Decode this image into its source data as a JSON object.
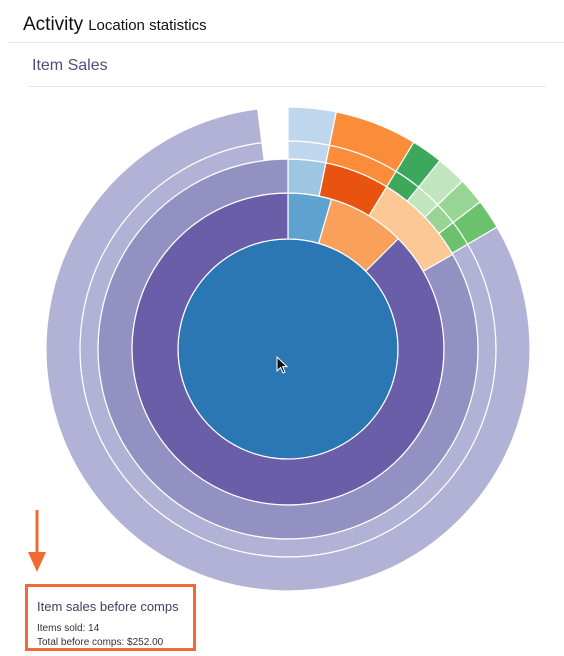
{
  "header": {
    "title": "Activity",
    "subtitle": "Location statistics"
  },
  "section": {
    "title": "Item Sales"
  },
  "chart_data": {
    "type": "sunburst",
    "rings": [
      {
        "name": "ring-1",
        "segments": [
          {
            "value": 1.0,
            "color": "#2a77b4"
          }
        ]
      },
      {
        "name": "ring-2",
        "segments": [
          {
            "value": 0.045,
            "color": "#5ea2d0"
          },
          {
            "value": 0.08,
            "color": "#f9a15a"
          },
          {
            "value": 0.875,
            "color": "#6a5ea8"
          }
        ]
      },
      {
        "name": "ring-3",
        "segments": [
          {
            "value": 0.032,
            "color": "#9ec6e3"
          },
          {
            "value": 0.055,
            "color": "#e8540f"
          },
          {
            "value": 0.08,
            "color": "#fcc996"
          },
          {
            "value": 0.833,
            "color": "#9391c2"
          }
        ]
      },
      {
        "name": "ring-4",
        "segments": [
          {
            "value": 0.032,
            "color": "#bfd7ed"
          },
          {
            "value": 0.055,
            "color": "#fb8c3a"
          },
          {
            "value": 0.021,
            "color": "#3da85b"
          },
          {
            "value": 0.02,
            "color": "#c1e6bf"
          },
          {
            "value": 0.018,
            "color": "#98d594"
          },
          {
            "value": 0.02,
            "color": "#6cc16c"
          },
          {
            "value": 0.814,
            "color": "#b2b1d6"
          }
        ]
      },
      {
        "name": "ring-5",
        "segments": [
          {
            "value": 0.032,
            "color": "#bfd7ed"
          },
          {
            "value": 0.055,
            "color": "#fb8c3a"
          },
          {
            "value": 0.021,
            "color": "#3da85b"
          },
          {
            "value": 0.02,
            "color": "#c1e6bf"
          },
          {
            "value": 0.018,
            "color": "#98d594"
          },
          {
            "value": 0.02,
            "color": "#6cc16c"
          },
          {
            "value": 0.814,
            "color": "#b2b1d6"
          }
        ]
      }
    ],
    "start_angle_deg": 0
  },
  "tooltip": {
    "title": "Item sales before comps",
    "items_sold": "Items sold: 14",
    "total": "Total before comps: $252.00"
  },
  "colors": {
    "highlight": "#f06a35",
    "title_text": "#4f4f7a"
  }
}
